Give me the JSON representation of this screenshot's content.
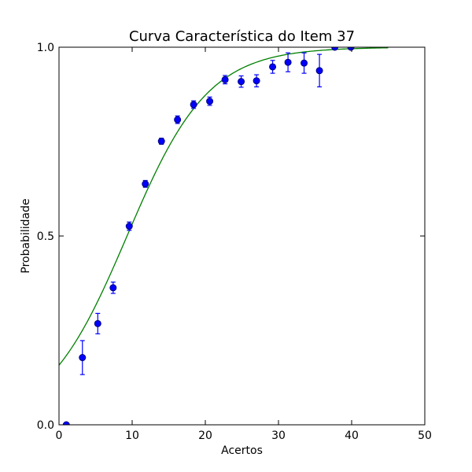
{
  "chart_data": {
    "type": "scatter",
    "title": "Curva Característica do Item 37",
    "xlabel": "Acertos",
    "ylabel": "Probabilidade",
    "xlim": [
      0,
      50
    ],
    "ylim": [
      0.0,
      1.0
    ],
    "x_ticks": [
      0,
      10,
      20,
      30,
      40,
      50
    ],
    "x_tick_labels": [
      "0",
      "10",
      "20",
      "30",
      "40",
      "50"
    ],
    "y_ticks": [
      0.0,
      0.5,
      1.0
    ],
    "y_tick_labels": [
      "0.0",
      "0.5",
      "1.0"
    ],
    "grid": false,
    "series": [
      {
        "kind": "points-with-errorbars",
        "color": "#0000ff",
        "marker_edge_color": "#00007f",
        "points": [
          {
            "x": 1.0,
            "y": 0.0,
            "err": 0.0
          },
          {
            "x": 3.2,
            "y": 0.178,
            "err": 0.045
          },
          {
            "x": 5.3,
            "y": 0.268,
            "err": 0.027
          },
          {
            "x": 7.4,
            "y": 0.363,
            "err": 0.015
          },
          {
            "x": 9.6,
            "y": 0.526,
            "err": 0.011
          },
          {
            "x": 11.8,
            "y": 0.638,
            "err": 0.009
          },
          {
            "x": 14.0,
            "y": 0.751,
            "err": 0.008
          },
          {
            "x": 16.2,
            "y": 0.808,
            "err": 0.01
          },
          {
            "x": 18.4,
            "y": 0.848,
            "err": 0.01
          },
          {
            "x": 20.6,
            "y": 0.857,
            "err": 0.011
          },
          {
            "x": 22.7,
            "y": 0.914,
            "err": 0.011
          },
          {
            "x": 24.9,
            "y": 0.909,
            "err": 0.015
          },
          {
            "x": 27.0,
            "y": 0.911,
            "err": 0.016
          },
          {
            "x": 29.2,
            "y": 0.948,
            "err": 0.017
          },
          {
            "x": 31.3,
            "y": 0.96,
            "err": 0.025
          },
          {
            "x": 33.5,
            "y": 0.958,
            "err": 0.027
          },
          {
            "x": 35.6,
            "y": 0.938,
            "err": 0.043
          },
          {
            "x": 37.7,
            "y": 1.0,
            "err": 0.0
          },
          {
            "x": 39.9,
            "y": 1.0,
            "err": 0.0
          }
        ]
      },
      {
        "kind": "curve",
        "color": "#008000",
        "x_range": [
          0,
          45
        ],
        "logistic": {
          "a": 0.18,
          "b": 9.3
        }
      }
    ]
  }
}
